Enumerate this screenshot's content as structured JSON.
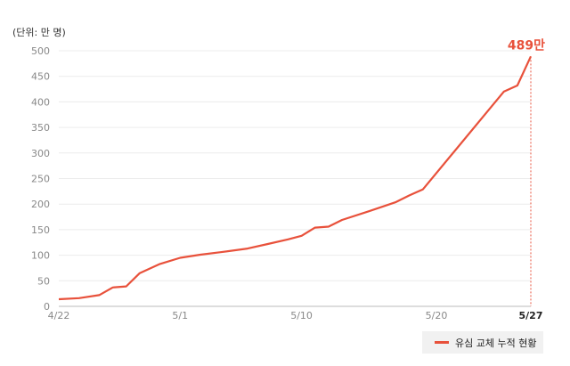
{
  "colors": {
    "series": "#e8513b",
    "grid": "#ececec",
    "axis": "#bbbbbb",
    "guide": "#e8513b"
  },
  "chart_data": {
    "type": "line",
    "unit_label": "(단위: 만 명)",
    "yticks": [
      "0",
      "50",
      "100",
      "150",
      "200",
      "250",
      "300",
      "350",
      "400",
      "450",
      "500"
    ],
    "ylim": [
      0,
      500
    ],
    "xlim": [
      0,
      35
    ],
    "x_ticks": [
      {
        "x": 0,
        "label": "4/22"
      },
      {
        "x": 9,
        "label": "5/1"
      },
      {
        "x": 18,
        "label": "5/10"
      },
      {
        "x": 28,
        "label": "5/20"
      },
      {
        "x": 35,
        "label": "5/27"
      }
    ],
    "series": [
      {
        "name": "유심 교체 누적 현황",
        "points": [
          [
            0,
            14
          ],
          [
            1.5,
            16
          ],
          [
            3,
            22
          ],
          [
            4,
            37
          ],
          [
            5,
            39
          ],
          [
            6,
            65
          ],
          [
            7.5,
            83
          ],
          [
            9,
            95
          ],
          [
            10.5,
            101
          ],
          [
            12,
            106
          ],
          [
            14,
            113
          ],
          [
            15.5,
            122
          ],
          [
            17,
            131
          ],
          [
            18,
            138
          ],
          [
            19,
            154
          ],
          [
            20,
            156
          ],
          [
            21,
            169
          ],
          [
            23,
            186
          ],
          [
            25,
            204
          ],
          [
            26,
            217
          ],
          [
            27,
            229
          ],
          [
            33,
            420
          ],
          [
            34,
            432
          ],
          [
            35,
            489
          ]
        ]
      }
    ],
    "end_annotation": "489만",
    "legend_position": "bottom-right",
    "grid": true
  }
}
